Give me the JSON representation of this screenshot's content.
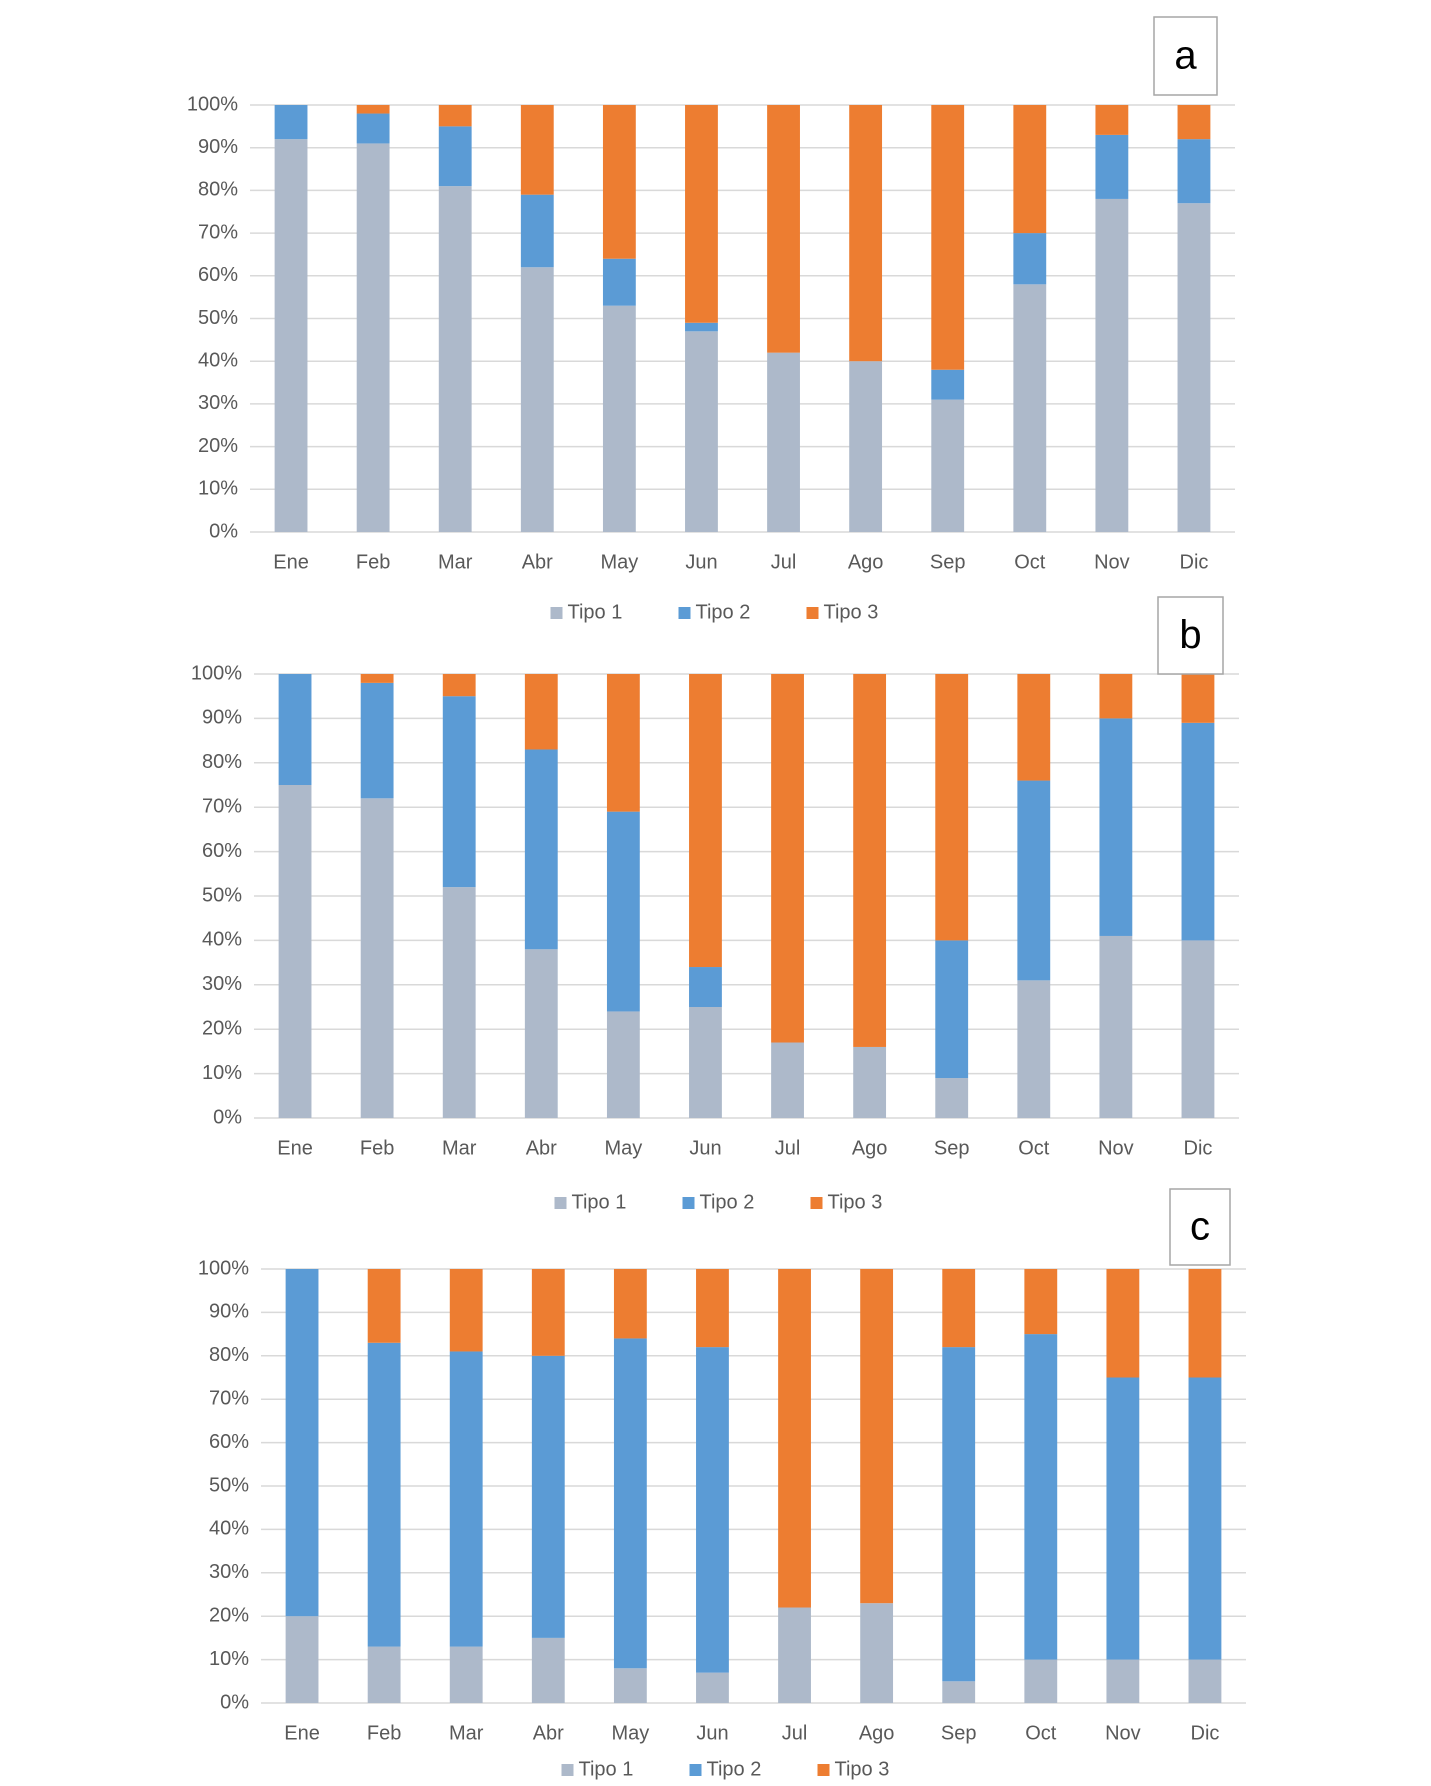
{
  "chart_data": [
    {
      "type": "bar",
      "stacked": true,
      "title": "a",
      "categories": [
        "Ene",
        "Feb",
        "Mar",
        "Abr",
        "May",
        "Jun",
        "Jul",
        "Ago",
        "Sep",
        "Oct",
        "Nov",
        "Dic"
      ],
      "series": [
        {
          "name": "Tipo 1",
          "color": "#adb9ca",
          "values": [
            92,
            91,
            81,
            62,
            53,
            47,
            42,
            40,
            31,
            58,
            78,
            77
          ]
        },
        {
          "name": "Tipo 2",
          "color": "#5b9bd5",
          "values": [
            8,
            7,
            14,
            17,
            11,
            2,
            0,
            0,
            7,
            12,
            15,
            15
          ]
        },
        {
          "name": "Tipo 3",
          "color": "#ed7d31",
          "values": [
            0,
            2,
            5,
            21,
            36,
            51,
            58,
            60,
            62,
            30,
            7,
            8
          ]
        }
      ],
      "ylim": [
        0,
        100
      ],
      "yticks": [
        {
          "value": 0,
          "label": "0%"
        },
        {
          "value": 10,
          "label": "10%"
        },
        {
          "value": 20,
          "label": "20%"
        },
        {
          "value": 30,
          "label": "30%"
        },
        {
          "value": 40,
          "label": "40%"
        },
        {
          "value": 50,
          "label": "50%"
        },
        {
          "value": 60,
          "label": "60%"
        },
        {
          "value": 70,
          "label": "70%"
        },
        {
          "value": 80,
          "label": "80%"
        },
        {
          "value": 90,
          "label": "90%"
        },
        {
          "value": 100,
          "label": "100%"
        }
      ],
      "grid": true,
      "legend": "bottom"
    },
    {
      "type": "bar",
      "stacked": true,
      "title": "b",
      "categories": [
        "Ene",
        "Feb",
        "Mar",
        "Abr",
        "May",
        "Jun",
        "Jul",
        "Ago",
        "Sep",
        "Oct",
        "Nov",
        "Dic"
      ],
      "series": [
        {
          "name": "Tipo 1",
          "color": "#adb9ca",
          "values": [
            75,
            72,
            52,
            38,
            24,
            25,
            17,
            16,
            9,
            31,
            41,
            40
          ]
        },
        {
          "name": "Tipo 2",
          "color": "#5b9bd5",
          "values": [
            25,
            26,
            43,
            45,
            45,
            9,
            0,
            0,
            31,
            45,
            49,
            49
          ]
        },
        {
          "name": "Tipo 3",
          "color": "#ed7d31",
          "values": [
            0,
            2,
            5,
            17,
            31,
            66,
            83,
            84,
            60,
            24,
            10,
            11
          ]
        }
      ],
      "ylim": [
        0,
        100
      ],
      "yticks": [
        {
          "value": 0,
          "label": "0%"
        },
        {
          "value": 10,
          "label": "10%"
        },
        {
          "value": 20,
          "label": "20%"
        },
        {
          "value": 30,
          "label": "30%"
        },
        {
          "value": 40,
          "label": "40%"
        },
        {
          "value": 50,
          "label": "50%"
        },
        {
          "value": 60,
          "label": "60%"
        },
        {
          "value": 70,
          "label": "70%"
        },
        {
          "value": 80,
          "label": "80%"
        },
        {
          "value": 90,
          "label": "90%"
        },
        {
          "value": 100,
          "label": "100%"
        }
      ],
      "grid": true,
      "legend": "bottom"
    },
    {
      "type": "bar",
      "stacked": true,
      "title": "c",
      "categories": [
        "Ene",
        "Feb",
        "Mar",
        "Abr",
        "May",
        "Jun",
        "Jul",
        "Ago",
        "Sep",
        "Oct",
        "Nov",
        "Dic"
      ],
      "series": [
        {
          "name": "Tipo 1",
          "color": "#adb9ca",
          "values": [
            20,
            13,
            13,
            15,
            8,
            7,
            22,
            23,
            5,
            10,
            10,
            10
          ]
        },
        {
          "name": "Tipo 2",
          "color": "#5b9bd5",
          "values": [
            80,
            70,
            68,
            65,
            76,
            75,
            0,
            0,
            77,
            75,
            65,
            65
          ]
        },
        {
          "name": "Tipo 3",
          "color": "#ed7d31",
          "values": [
            0,
            17,
            19,
            20,
            16,
            18,
            78,
            77,
            18,
            15,
            25,
            25
          ]
        }
      ],
      "ylim": [
        0,
        100
      ],
      "yticks": [
        {
          "value": 0,
          "label": "0%"
        },
        {
          "value": 10,
          "label": "10%"
        },
        {
          "value": 20,
          "label": "20%"
        },
        {
          "value": 30,
          "label": "30%"
        },
        {
          "value": 40,
          "label": "40%"
        },
        {
          "value": 50,
          "label": "50%"
        },
        {
          "value": 60,
          "label": "60%"
        },
        {
          "value": 70,
          "label": "70%"
        },
        {
          "value": 80,
          "label": "80%"
        },
        {
          "value": 90,
          "label": "90%"
        },
        {
          "value": 100,
          "label": "100%"
        }
      ],
      "grid": true,
      "legend": "bottom"
    }
  ]
}
